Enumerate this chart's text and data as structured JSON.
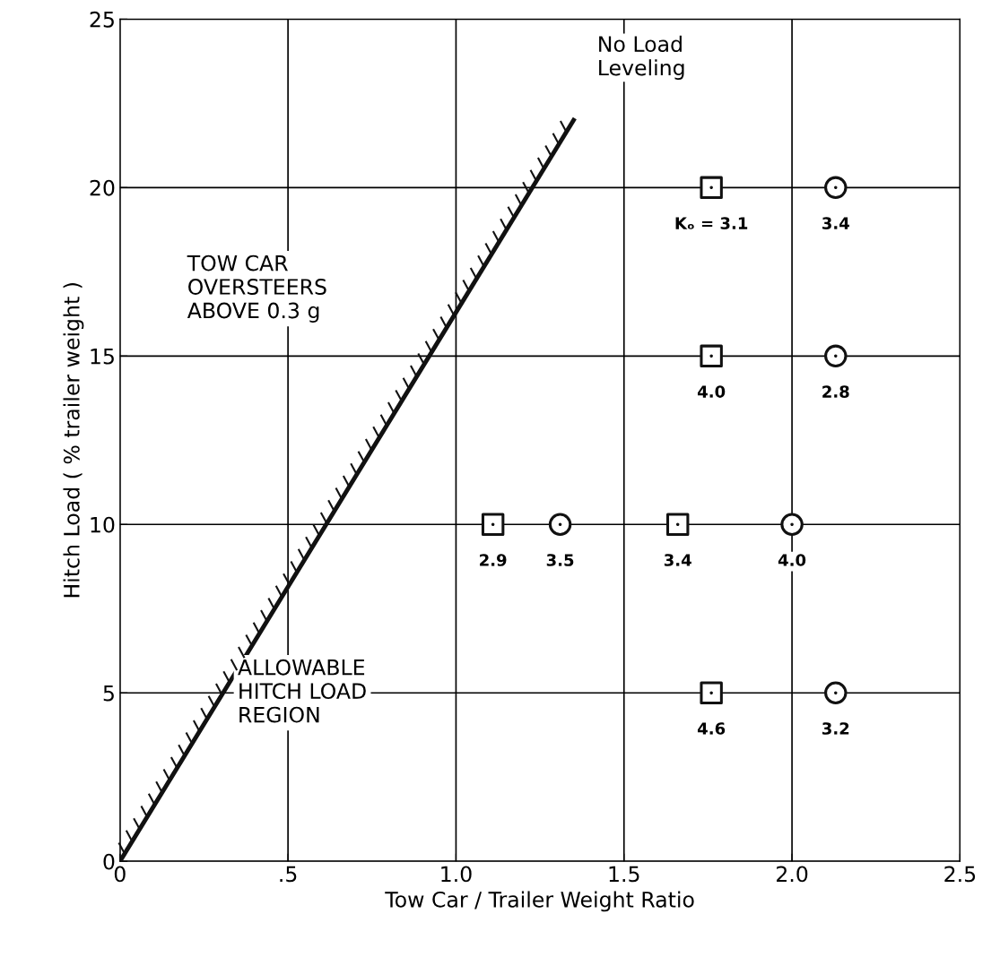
{
  "chart_data": {
    "type": "scatter",
    "xlabel": "Tow Car / Trailer Weight Ratio",
    "ylabel": "Hitch Load ( % trailer weight )",
    "xlim": [
      0,
      2.5
    ],
    "ylim": [
      0,
      25
    ],
    "xticks": [
      0,
      {
        "value": 0.5,
        "label": ".5"
      },
      {
        "value": 1.0,
        "label": "1.0"
      },
      1.5,
      {
        "value": 2.0,
        "label": "2.0"
      },
      2.5
    ],
    "yticks": [
      0,
      5,
      10,
      15,
      20,
      25
    ],
    "grid": true,
    "series": [
      {
        "marker": "square",
        "color": "#111111",
        "x": [
          1.11,
          1.66,
          1.76,
          1.76,
          1.76
        ],
        "values": [
          10,
          10,
          20,
          15,
          5
        ]
      },
      {
        "marker": "circle",
        "color": "#111111",
        "x": [
          1.31,
          2.0,
          2.13,
          2.13,
          2.13
        ],
        "values": [
          10,
          10,
          20,
          15,
          5
        ]
      },
      {
        "type": "line",
        "color": "#111111",
        "x": [
          0,
          1.35
        ],
        "values": [
          0,
          22
        ]
      }
    ],
    "annotations": [
      {
        "text": "No Load\nLeveling",
        "x": 1.35,
        "y": 22
      },
      "TOW CAR\nOVERSTEERS\nABOVE 0.3 g",
      "ALLOWABLE\nHITCH LOAD\nREGION",
      {
        "text": "2.9",
        "x": 1.11,
        "y": 10
      },
      {
        "text": "3.4",
        "x": 1.66,
        "y": 10
      },
      {
        "text": "Kₒ = 3.1",
        "x": 1.76,
        "y": 20
      },
      {
        "text": "4.0",
        "x": 1.76,
        "y": 15
      },
      {
        "text": "4.6",
        "x": 1.76,
        "y": 5
      },
      {
        "text": "3.5",
        "x": 1.31,
        "y": 10
      },
      {
        "text": "4.0",
        "x": 2.0,
        "y": 10
      },
      {
        "text": "3.4",
        "x": 2.13,
        "y": 20
      },
      {
        "text": "2.8",
        "x": 2.13,
        "y": 15
      },
      {
        "text": "3.2",
        "x": 2.13,
        "y": 5
      }
    ]
  }
}
